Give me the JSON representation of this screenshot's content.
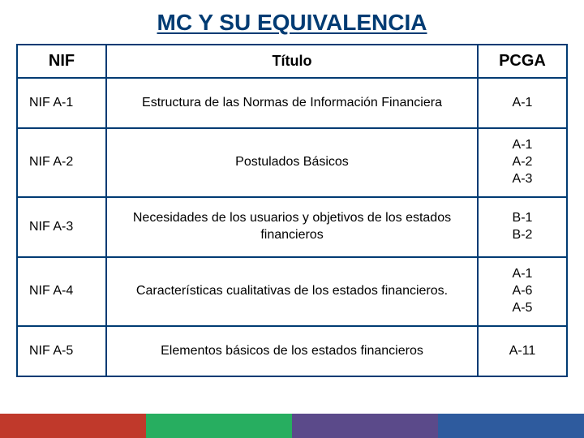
{
  "title": "MC Y SU EQUIVALENCIA",
  "headers": {
    "nif": "NIF",
    "titulo": "Título",
    "pcga": "PCGA"
  },
  "rows": [
    {
      "nif": "NIF A-1",
      "titulo": "Estructura de las Normas de Información Financiera",
      "pcga": "A-1",
      "height_class": "row-short"
    },
    {
      "nif": "NIF A-2",
      "titulo": "Postulados Básicos",
      "pcga": "A-1\nA-2\nA-3",
      "height_class": "row-tall"
    },
    {
      "nif": "NIF A-3",
      "titulo": "Necesidades de los usuarios y objetivos de los estados financieros",
      "pcga": "B-1\nB-2",
      "height_class": "row-med"
    },
    {
      "nif": "NIF A-4",
      "titulo": "Características cualitativas de los estados financieros.",
      "pcga": "A-1\nA-6\nA-5",
      "height_class": "row-tall"
    },
    {
      "nif": "NIF A-5",
      "titulo": "Elementos básicos de los estados financieros",
      "pcga": "A-11",
      "height_class": "row-short"
    }
  ],
  "colors": {
    "title_color": "#003b73",
    "border_color": "#003b73",
    "text_color": "#000000",
    "bar_red": "#c0392b",
    "bar_green": "#27ae60",
    "bar_purple": "#5b4a8a",
    "bar_blue": "#2e5b9e",
    "background": "#ffffff"
  },
  "fonts": {
    "title_size": 28,
    "header_size_main": 20,
    "header_size_mid": 18,
    "cell_size": 16
  }
}
